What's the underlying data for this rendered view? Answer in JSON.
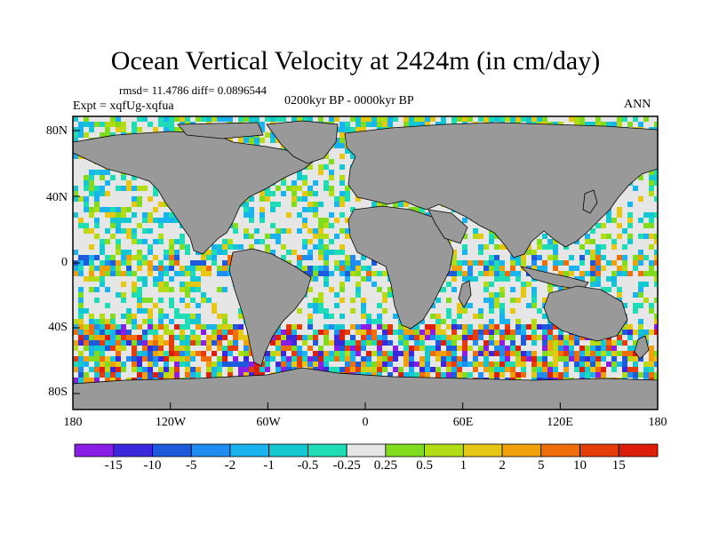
{
  "title": "Ocean Vertical Velocity at 2424m (in cm/day)",
  "stats": "rmsd= 11.4786 diff= 0.0896544",
  "experiment": "Expt = xqfUg-xqfua",
  "period": "0200kyr BP - 0000kyr BP",
  "season": "ANN",
  "lat_labels": [
    "80N",
    "40N",
    "0",
    "40S",
    "80S"
  ],
  "lon_labels": [
    "180",
    "120W",
    "60W",
    "0",
    "60E",
    "120E",
    "180"
  ],
  "colorbar": {
    "labels": [
      "-15",
      "-10",
      "-5",
      "-2",
      "-1",
      "-0.5",
      "-0.25",
      "0.25",
      "0.5",
      "1",
      "2",
      "5",
      "10",
      "15"
    ],
    "colors": [
      "#8a1ee6",
      "#3c28dc",
      "#1e5adc",
      "#1e8cf0",
      "#19b4f0",
      "#14c8d2",
      "#1edcb4",
      "#e6e6e6",
      "#82dc1e",
      "#b4dc14",
      "#e6c814",
      "#f0a00a",
      "#f06e0a",
      "#e63c0a",
      "#dc1e0a"
    ]
  },
  "map_colors": {
    "land": "#999999",
    "near_zero": "#e6e6e6",
    "coast": "#000000"
  }
}
